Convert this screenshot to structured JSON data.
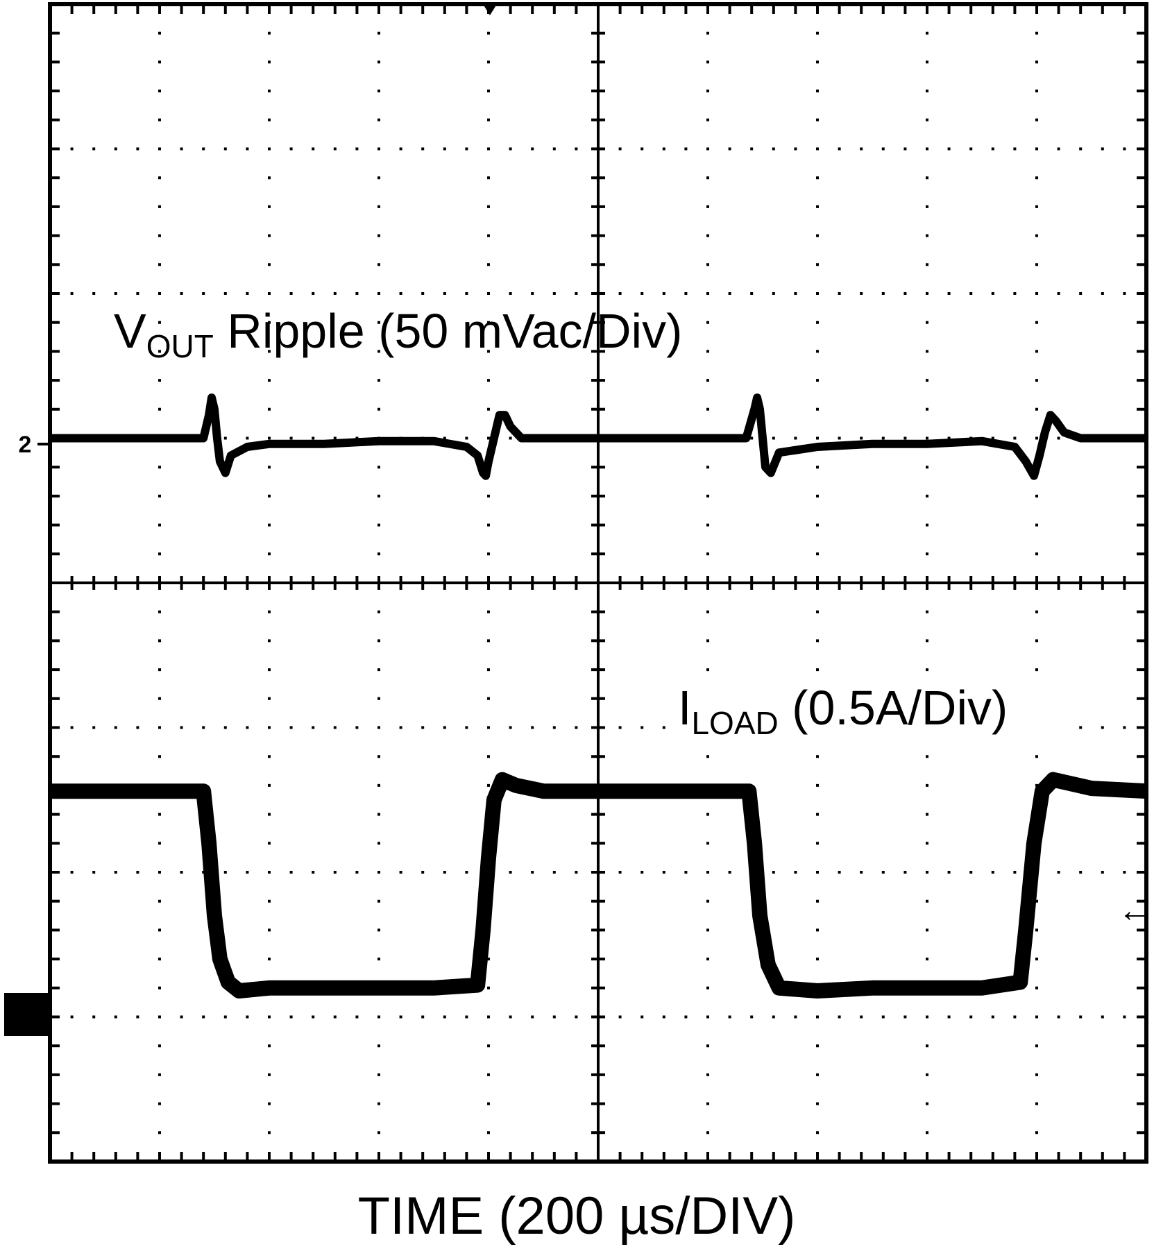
{
  "chart_data": {
    "type": "line",
    "x_label": "TIME (200 µs/DIV)",
    "xlim": [
      0,
      2000
    ],
    "ylim": [
      -250,
      150
    ],
    "y2lim": [
      -0.5,
      3.5
    ],
    "grid": true,
    "channel_marker": "2",
    "series": [
      {
        "label_parts": [
          "V",
          "OUT",
          " Ripple (50 mVac/Div)"
        ],
        "color": "#000000",
        "x": [
          0,
          100,
          200,
          280,
          290,
          295,
          300,
          305,
          310,
          320,
          330,
          360,
          400,
          500,
          600,
          700,
          760,
          780,
          790,
          795,
          800,
          810,
          820,
          830,
          840,
          860,
          900,
          1000,
          1100,
          1200,
          1270,
          1285,
          1290,
          1295,
          1300,
          1305,
          1315,
          1330,
          1400,
          1500,
          1600,
          1700,
          1760,
          1780,
          1795,
          1805,
          1815,
          1825,
          1835,
          1850,
          1880,
          1950,
          2000
        ],
        "values": [
          0,
          0,
          0,
          0,
          8,
          14,
          10,
          0,
          -8,
          -12,
          -6,
          -3,
          -2,
          -2,
          -1,
          -1,
          -3,
          -6,
          -12,
          -13,
          -8,
          0,
          8,
          8,
          4,
          0,
          0,
          0,
          0,
          0,
          0,
          10,
          14,
          10,
          0,
          -10,
          -12,
          -5,
          -3,
          -2,
          -2,
          -1,
          -3,
          -8,
          -13,
          -6,
          2,
          8,
          6,
          2,
          0,
          0,
          0
        ]
      },
      {
        "label_parts": [
          "I",
          "LOAD",
          " (0.5A/Div)"
        ],
        "color": "#000000",
        "axis": "y2",
        "x": [
          0,
          280,
          290,
          300,
          310,
          325,
          345,
          400,
          500,
          600,
          700,
          780,
          790,
          800,
          810,
          825,
          850,
          900,
          1000,
          1100,
          1275,
          1285,
          1295,
          1310,
          1330,
          1400,
          1500,
          1700,
          1770,
          1780,
          1795,
          1810,
          1830,
          1900,
          2000
        ],
        "values": [
          0.78,
          0.78,
          0.6,
          0.35,
          0.2,
          0.12,
          0.09,
          0.1,
          0.1,
          0.1,
          0.1,
          0.11,
          0.3,
          0.55,
          0.75,
          0.82,
          0.8,
          0.78,
          0.78,
          0.78,
          0.78,
          0.6,
          0.35,
          0.18,
          0.1,
          0.09,
          0.1,
          0.1,
          0.12,
          0.3,
          0.6,
          0.78,
          0.82,
          0.79,
          0.78
        ]
      }
    ]
  }
}
